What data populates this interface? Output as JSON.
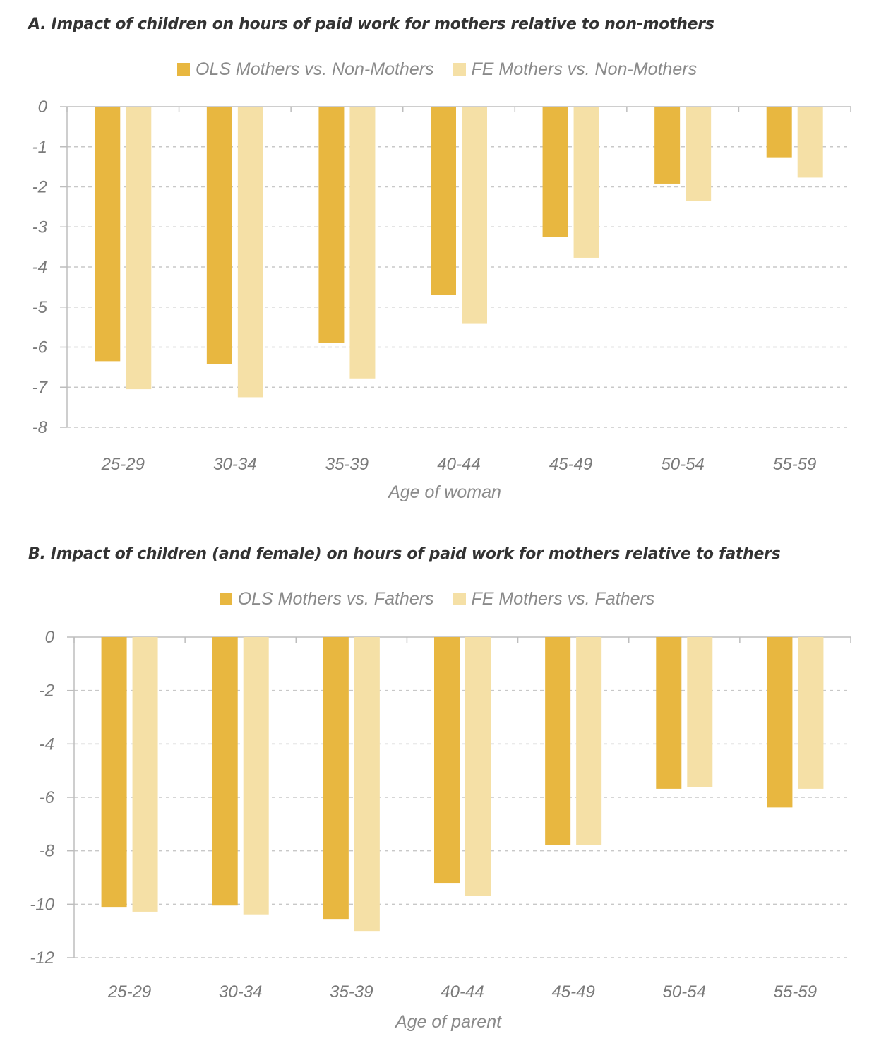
{
  "chart_data": [
    {
      "type": "bar",
      "title": "A. Impact of children on hours of paid work for mothers relative to non-mothers",
      "xlabel": "Age of woman",
      "ylabel": "",
      "categories": [
        "25-29",
        "30-34",
        "35-39",
        "40-44",
        "45-49",
        "50-54",
        "55-59"
      ],
      "series": [
        {
          "name": "OLS Mothers vs. Non-Mothers",
          "color": "#E8B740",
          "values": [
            -6.35,
            -6.42,
            -5.9,
            -4.7,
            -3.25,
            -1.92,
            -1.28
          ]
        },
        {
          "name": "FE Mothers vs. Non-Mothers",
          "color": "#F5E0A6",
          "values": [
            -7.05,
            -7.25,
            -6.78,
            -5.42,
            -3.77,
            -2.35,
            -1.77
          ]
        }
      ],
      "ylim": [
        -8,
        0
      ],
      "yticks": [
        0,
        -1,
        -2,
        -3,
        -4,
        -5,
        -6,
        -7,
        -8
      ],
      "grid": true,
      "legend": "top-center"
    },
    {
      "type": "bar",
      "title": "B. Impact of children (and female) on hours of paid work for mothers relative to fathers",
      "xlabel": "Age of parent",
      "ylabel": "",
      "categories": [
        "25-29",
        "30-34",
        "35-39",
        "40-44",
        "45-49",
        "50-54",
        "55-59"
      ],
      "series": [
        {
          "name": "OLS Mothers vs. Fathers",
          "color": "#E8B740",
          "values": [
            -10.1,
            -10.05,
            -10.55,
            -9.2,
            -7.78,
            -5.68,
            -6.38
          ]
        },
        {
          "name": "FE Mothers vs. Fathers",
          "color": "#F5E0A6",
          "values": [
            -10.28,
            -10.38,
            -11.0,
            -9.7,
            -7.78,
            -5.63,
            -5.68
          ]
        }
      ],
      "ylim": [
        -12,
        0
      ],
      "yticks": [
        0,
        -2,
        -4,
        -6,
        -8,
        -10,
        -12
      ],
      "grid": true,
      "legend": "top-center"
    }
  ]
}
